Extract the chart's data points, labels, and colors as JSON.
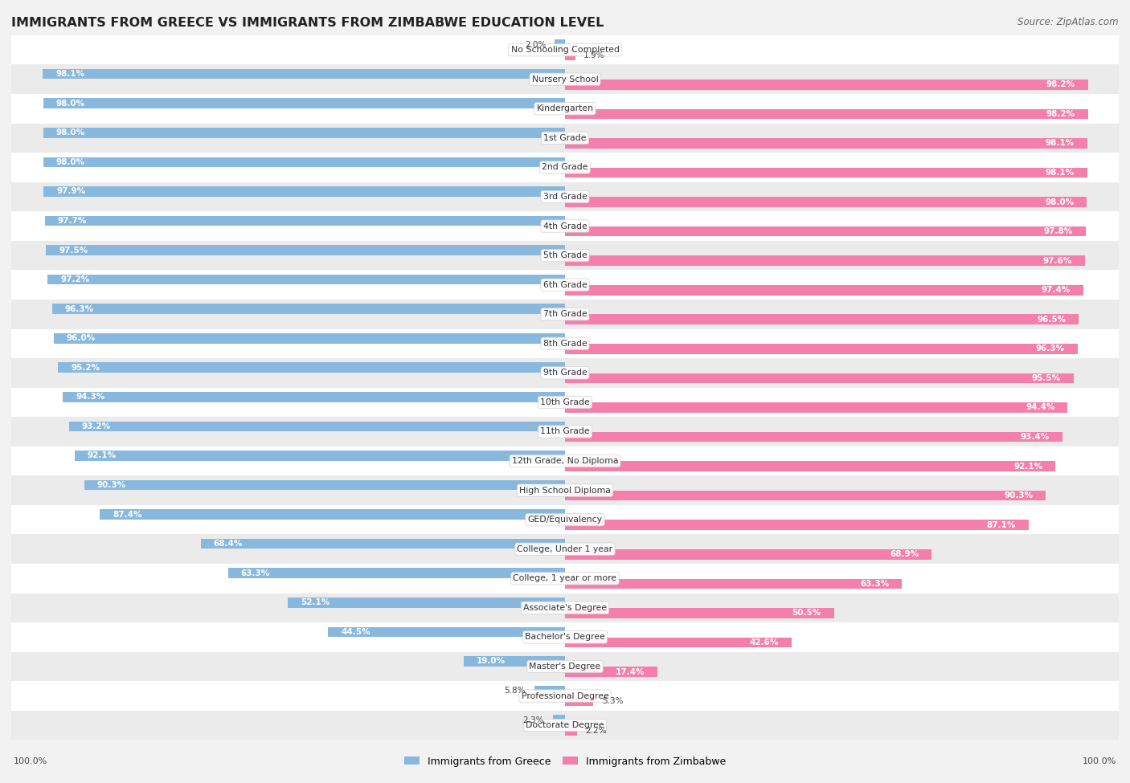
{
  "title": "IMMIGRANTS FROM GREECE VS IMMIGRANTS FROM ZIMBABWE EDUCATION LEVEL",
  "source": "Source: ZipAtlas.com",
  "categories": [
    "No Schooling Completed",
    "Nursery School",
    "Kindergarten",
    "1st Grade",
    "2nd Grade",
    "3rd Grade",
    "4th Grade",
    "5th Grade",
    "6th Grade",
    "7th Grade",
    "8th Grade",
    "9th Grade",
    "10th Grade",
    "11th Grade",
    "12th Grade, No Diploma",
    "High School Diploma",
    "GED/Equivalency",
    "College, Under 1 year",
    "College, 1 year or more",
    "Associate's Degree",
    "Bachelor's Degree",
    "Master's Degree",
    "Professional Degree",
    "Doctorate Degree"
  ],
  "greece_values": [
    2.0,
    98.1,
    98.0,
    98.0,
    98.0,
    97.9,
    97.7,
    97.5,
    97.2,
    96.3,
    96.0,
    95.2,
    94.3,
    93.2,
    92.1,
    90.3,
    87.4,
    68.4,
    63.3,
    52.1,
    44.5,
    19.0,
    5.8,
    2.3
  ],
  "zimbabwe_values": [
    1.9,
    98.2,
    98.2,
    98.1,
    98.1,
    98.0,
    97.8,
    97.6,
    97.4,
    96.5,
    96.3,
    95.5,
    94.4,
    93.4,
    92.1,
    90.3,
    87.1,
    68.9,
    63.3,
    50.5,
    42.6,
    17.4,
    5.3,
    2.2
  ],
  "greece_color": "#88b8de",
  "zimbabwe_color": "#f47faa",
  "background_color": "#f2f2f2",
  "row_light": "#ffffff",
  "row_dark": "#ebebeb",
  "legend_greece": "Immigrants from Greece",
  "legend_zimbabwe": "Immigrants from Zimbabwe",
  "label_inside_color": "#ffffff",
  "label_outside_color": "#444444",
  "title_color": "#222222",
  "source_color": "#666666"
}
